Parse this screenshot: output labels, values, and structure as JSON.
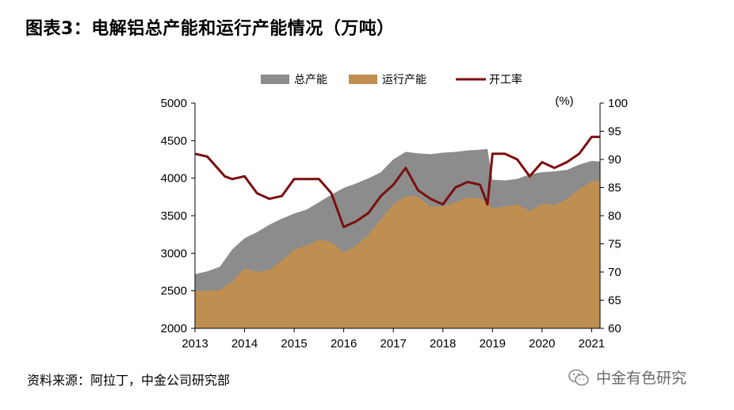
{
  "title": "图表3：电解铝总产能和运行产能情况（万吨）",
  "source": "资料来源：阿拉丁，中金公司研究部",
  "watermark": "中金有色研究",
  "chart_data": {
    "type": "area",
    "legend_position": "top",
    "y2_unit_label": "(%)",
    "x_ticks": [
      "2013",
      "2014",
      "2015",
      "2016",
      "2017",
      "2018",
      "2019",
      "2020",
      "2021"
    ],
    "y_left": {
      "min": 2000,
      "max": 5000,
      "ticks": [
        2000,
        2500,
        3000,
        3500,
        4000,
        4500,
        5000
      ]
    },
    "y_right": {
      "min": 60,
      "max": 100,
      "ticks": [
        60,
        65,
        70,
        75,
        80,
        85,
        90,
        95,
        100
      ]
    },
    "colors": {
      "total": "#8c8c8c",
      "running": "#bf8f52",
      "rate": "#7b0f0f"
    },
    "series": [
      {
        "name": "总产能",
        "type": "area",
        "axis": "left",
        "x": [
          2013.0,
          2013.25,
          2013.5,
          2013.75,
          2014.0,
          2014.25,
          2014.5,
          2014.75,
          2015.0,
          2015.25,
          2015.5,
          2015.75,
          2016.0,
          2016.25,
          2016.5,
          2016.75,
          2017.0,
          2017.25,
          2017.5,
          2017.75,
          2018.0,
          2018.25,
          2018.5,
          2018.75,
          2018.9,
          2019.0,
          2019.25,
          2019.5,
          2019.75,
          2020.0,
          2020.25,
          2020.5,
          2020.75,
          2021.0,
          2021.17
        ],
        "values": [
          2720,
          2760,
          2820,
          3050,
          3200,
          3280,
          3380,
          3460,
          3530,
          3580,
          3680,
          3780,
          3870,
          3930,
          4000,
          4080,
          4250,
          4350,
          4330,
          4320,
          4340,
          4350,
          4370,
          4380,
          4390,
          3980,
          3970,
          3990,
          4050,
          4080,
          4090,
          4110,
          4180,
          4230,
          4220
        ]
      },
      {
        "name": "运行产能",
        "type": "area",
        "axis": "left",
        "x": [
          2013.0,
          2013.25,
          2013.5,
          2013.75,
          2014.0,
          2014.25,
          2014.5,
          2014.75,
          2015.0,
          2015.25,
          2015.5,
          2015.75,
          2016.0,
          2016.25,
          2016.5,
          2016.75,
          2017.0,
          2017.25,
          2017.5,
          2017.75,
          2018.0,
          2018.25,
          2018.5,
          2018.75,
          2018.9,
          2019.0,
          2019.25,
          2019.5,
          2019.75,
          2020.0,
          2020.25,
          2020.5,
          2020.75,
          2021.0,
          2021.17
        ],
        "values": [
          2500,
          2500,
          2510,
          2620,
          2800,
          2750,
          2780,
          2900,
          3050,
          3100,
          3180,
          3150,
          3010,
          3100,
          3250,
          3450,
          3650,
          3760,
          3750,
          3620,
          3620,
          3680,
          3740,
          3730,
          3680,
          3600,
          3620,
          3650,
          3560,
          3660,
          3640,
          3720,
          3850,
          3960,
          3970
        ]
      },
      {
        "name": "开工率",
        "type": "line",
        "axis": "right",
        "x": [
          2013.0,
          2013.25,
          2013.4,
          2013.6,
          2013.75,
          2014.0,
          2014.25,
          2014.5,
          2014.75,
          2015.0,
          2015.25,
          2015.5,
          2015.75,
          2016.0,
          2016.25,
          2016.5,
          2016.75,
          2017.0,
          2017.25,
          2017.5,
          2017.75,
          2018.0,
          2018.25,
          2018.5,
          2018.75,
          2018.9,
          2019.0,
          2019.25,
          2019.5,
          2019.75,
          2020.0,
          2020.25,
          2020.5,
          2020.75,
          2021.0,
          2021.17
        ],
        "values": [
          91,
          90.5,
          89,
          87,
          86.5,
          87,
          84,
          83,
          83.5,
          86.5,
          86.5,
          86.5,
          84,
          78,
          79,
          80.5,
          83.5,
          85.5,
          88.5,
          84.5,
          83,
          82,
          85,
          86,
          85.5,
          82,
          91,
          91,
          90,
          87,
          89.5,
          88.5,
          89.5,
          91,
          94,
          94
        ]
      }
    ]
  }
}
